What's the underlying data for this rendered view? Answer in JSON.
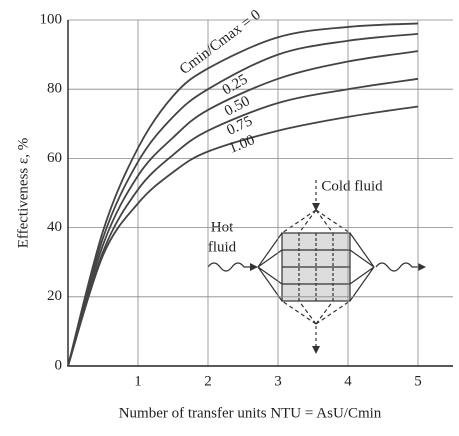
{
  "chart_data": {
    "type": "line",
    "xlabel": "Number of transfer units NTU = AsU/Cmin",
    "ylabel": "Effectiveness ε, %",
    "x": [
      0,
      0.5,
      1,
      1.5,
      2,
      3,
      4,
      5
    ],
    "series": [
      {
        "name": "Cmin/Cmax = 0",
        "color": "#444",
        "values": [
          0,
          39,
          63,
          78,
          86,
          95,
          98,
          99
        ]
      },
      {
        "name": "0.25",
        "color": "#444",
        "values": [
          0,
          37,
          59,
          72,
          80,
          90,
          94,
          96
        ]
      },
      {
        "name": "0.50",
        "color": "#444",
        "values": [
          0,
          35,
          55,
          66,
          74,
          83,
          88,
          91
        ]
      },
      {
        "name": "0.75",
        "color": "#444",
        "values": [
          0,
          33,
          51,
          61,
          68,
          76,
          80,
          83
        ]
      },
      {
        "name": "1.00",
        "color": "#444",
        "values": [
          0,
          32,
          47,
          56,
          62,
          68,
          72,
          75
        ]
      }
    ],
    "xlim": [
      0,
      5.5
    ],
    "ylim": [
      0,
      100
    ],
    "xticks": [
      1,
      2,
      3,
      4,
      5
    ],
    "yticks": [
      0,
      20,
      40,
      60,
      80,
      100
    ],
    "grid": true,
    "annotations": {
      "cold": "Cold fluid",
      "hot_1": "Hot",
      "hot_2": "fluid"
    }
  }
}
